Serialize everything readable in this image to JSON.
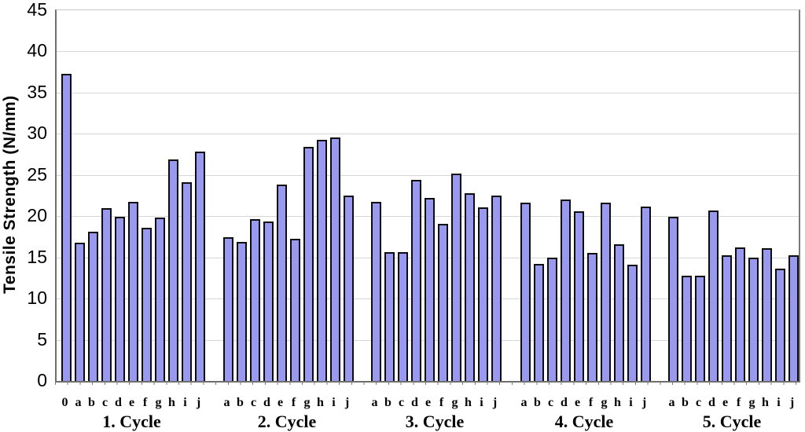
{
  "chart_data": {
    "type": "bar",
    "title": "",
    "xlabel": "",
    "ylabel": "Tensile Strength (N/mm)",
    "ylim": [
      0,
      45
    ],
    "ytick_step": 5,
    "yticks": [
      0,
      5,
      10,
      15,
      20,
      25,
      30,
      35,
      40,
      45
    ],
    "grid": true,
    "legend": false,
    "bar_fill_color": "#9999f0",
    "bar_border_color": "#0d0d0d",
    "gridline_color": "#d6d6d6",
    "axis_color": "#6e6e6e",
    "groups": [
      {
        "label": "1. Cycle",
        "categories": [
          "0",
          "a",
          "b",
          "c",
          "d",
          "e",
          "f",
          "g",
          "h",
          "i",
          "j"
        ],
        "values": [
          37.3,
          16.8,
          18.1,
          21.0,
          19.9,
          21.7,
          18.6,
          19.8,
          26.9,
          24.1,
          27.8
        ]
      },
      {
        "label": "2. Cycle",
        "categories": [
          "a",
          "b",
          "c",
          "d",
          "e",
          "f",
          "g",
          "h",
          "i",
          "j"
        ],
        "values": [
          17.4,
          16.9,
          19.6,
          19.4,
          23.8,
          17.3,
          28.4,
          29.3,
          29.6,
          22.5
        ]
      },
      {
        "label": "3. Cycle",
        "categories": [
          "a",
          "b",
          "c",
          "d",
          "e",
          "f",
          "g",
          "h",
          "i",
          "j"
        ],
        "values": [
          21.7,
          15.6,
          15.6,
          24.4,
          22.2,
          19.1,
          25.2,
          22.8,
          21.1,
          22.5
        ]
      },
      {
        "label": "4. Cycle",
        "categories": [
          "a",
          "b",
          "c",
          "d",
          "e",
          "f",
          "g",
          "h",
          "i",
          "j"
        ],
        "values": [
          21.6,
          14.2,
          15.0,
          22.0,
          20.6,
          15.5,
          21.6,
          16.6,
          14.1,
          21.2
        ]
      },
      {
        "label": "5. Cycle",
        "categories": [
          "a",
          "b",
          "c",
          "d",
          "e",
          "f",
          "g",
          "h",
          "i",
          "j"
        ],
        "values": [
          19.9,
          12.8,
          12.8,
          20.7,
          15.3,
          16.2,
          15.0,
          16.1,
          13.6,
          15.3
        ]
      }
    ]
  }
}
